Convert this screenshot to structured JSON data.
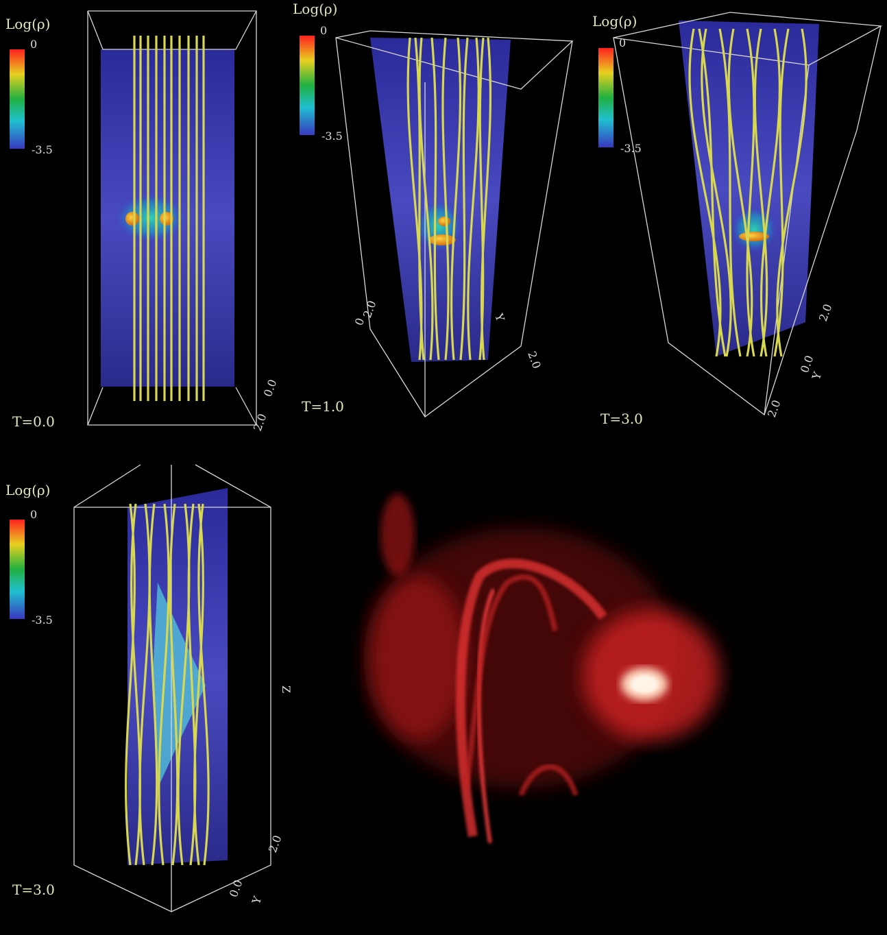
{
  "panels": [
    {
      "colorbar": {
        "title": "Log(ρ)",
        "max": "0",
        "min": "-3.5"
      },
      "time": "T=0.0",
      "axis_labels": [
        "0.0",
        "2.0"
      ]
    },
    {
      "colorbar": {
        "title": "Log(ρ)",
        "max": "0",
        "min": "-3.5"
      },
      "time": "T=1.0",
      "axis_labels": [
        "0",
        "2.0",
        "Y",
        "2.0"
      ]
    },
    {
      "colorbar": {
        "title": "Log(ρ)",
        "max": "0",
        "min": "-3.5"
      },
      "time": "T=3.0",
      "axis_labels": [
        "2.0",
        "0.0",
        "Y",
        "2.0"
      ]
    },
    {
      "colorbar": {
        "title": "Log(ρ)",
        "max": "0",
        "min": "-3.5"
      },
      "time": "T=3.0",
      "axis_labels": [
        "Z",
        "2.0",
        "0.0",
        "Y"
      ]
    }
  ]
}
